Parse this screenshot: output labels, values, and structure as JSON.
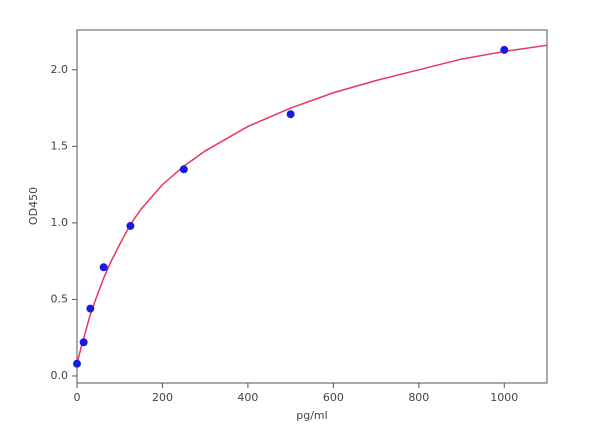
{
  "chart_data": {
    "type": "scatter",
    "x_label": "pg/ml",
    "y_label": "OD450",
    "xlim": [
      0,
      1100
    ],
    "ylim": [
      -0.046,
      2.26
    ],
    "xticks": [
      0,
      200,
      400,
      600,
      800,
      1000
    ],
    "yticks": [
      {
        "value": 0,
        "label": "0.0"
      },
      0.5,
      {
        "value": 1,
        "label": "1.0"
      },
      1.5,
      {
        "value": 2,
        "label": "2.0"
      }
    ],
    "series": [
      {
        "mode": "markers",
        "color": "#1a1ae6",
        "x": [
          0,
          15.6,
          31.25,
          62.5,
          125,
          250,
          500,
          1000
        ],
        "values": [
          0.08,
          0.22,
          0.44,
          0.71,
          0.98,
          1.35,
          1.71,
          2.13
        ]
      },
      {
        "mode": "line",
        "color": "#e8365a",
        "x": [
          0,
          10,
          20,
          30,
          45,
          62.5,
          80,
          100,
          125,
          150,
          200,
          250,
          300,
          400,
          500,
          600,
          700,
          800,
          900,
          1000,
          1100
        ],
        "values": [
          0.08,
          0.19,
          0.29,
          0.39,
          0.51,
          0.64,
          0.75,
          0.86,
          0.99,
          1.09,
          1.25,
          1.37,
          1.47,
          1.63,
          1.75,
          1.85,
          1.93,
          2.0,
          2.07,
          2.12,
          2.16
        ]
      }
    ]
  }
}
